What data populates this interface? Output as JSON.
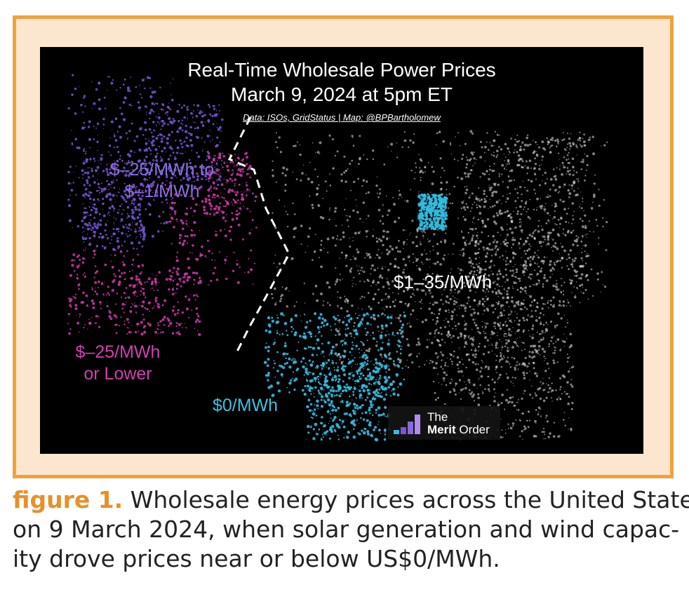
{
  "map": {
    "title_line1": "Real-Time Wholesale Power Prices",
    "title_line2": "March 9, 2024 at 5pm ET",
    "credit": "Data: ISOs, GridStatus | Map: @BPBartholomew",
    "labels": {
      "purple_line1": "$–25/MWh to",
      "purple_line2": "$–1/MWh",
      "magenta_line1": "$–25/MWh",
      "magenta_line2": "or Lower",
      "cyan": "$0/MWh",
      "white": "$1–35/MWh"
    },
    "logo_line1": "The",
    "logo_line2_bold": "Merit",
    "logo_line2_rest": " Order",
    "colors": {
      "purple": "#7a55d6",
      "magenta": "#cc3aa8",
      "cyan": "#33bde0",
      "white": "#e8e8e8",
      "frame_border": "#f0a23a",
      "frame_fill": "#fde6cf"
    }
  },
  "caption": {
    "figure_label": "figure 1.",
    "line1_rest": " Wholesale energy prices across the United States",
    "line2": "on 9 March 2024, when solar generation and wind capac-",
    "line3": "ity drove prices near or below US$0/MWh."
  }
}
